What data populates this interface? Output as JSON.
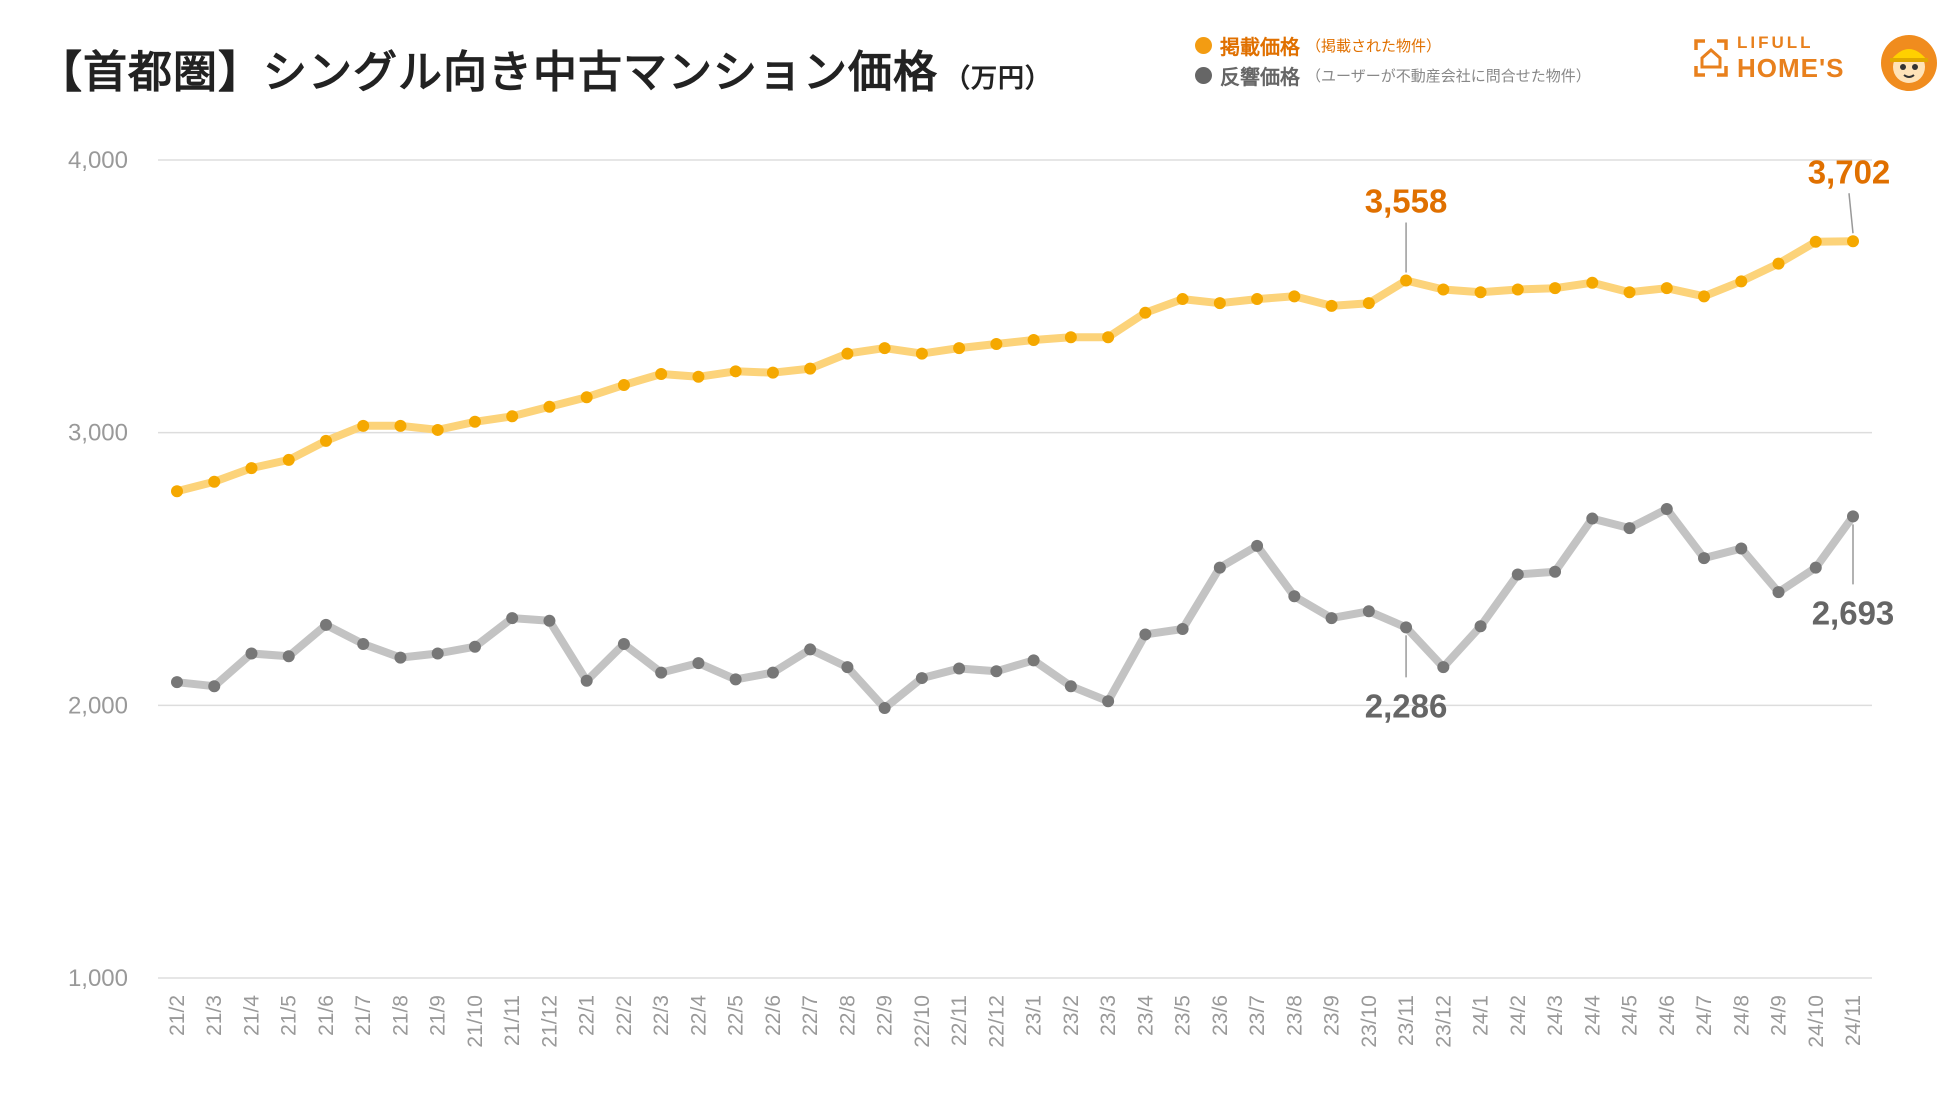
{
  "header": {
    "title": "【首都圏】シングル向き中古マンション価格",
    "unit": "（万円）"
  },
  "legend": [
    {
      "name": "掲載価格",
      "note": "（掲載された物件）",
      "color": "#f39c12"
    },
    {
      "name": "反響価格",
      "note": "（ユーザーが不動産会社に問合せた物件）",
      "color": "#666666"
    }
  ],
  "logo": {
    "line1": "LIFULL",
    "line2": "HOME'S"
  },
  "chart_data": {
    "type": "line",
    "title": "【首都圏】シングル向き中古マンション価格",
    "ylabel": "万円",
    "ylim": [
      1000,
      4000
    ],
    "yticks": [
      1000,
      2000,
      3000,
      4000
    ],
    "ytick_labels": [
      "1,000",
      "2,000",
      "3,000",
      "4,000"
    ],
    "grid": true,
    "legend_position": "top-right",
    "categories": [
      "21/2",
      "21/3",
      "21/4",
      "21/5",
      "21/6",
      "21/7",
      "21/8",
      "21/9",
      "21/10",
      "21/11",
      "21/12",
      "22/1",
      "22/2",
      "22/3",
      "22/4",
      "22/5",
      "22/6",
      "22/7",
      "22/8",
      "22/9",
      "22/10",
      "22/11",
      "22/12",
      "23/1",
      "23/2",
      "23/3",
      "23/4",
      "23/5",
      "23/6",
      "23/7",
      "23/8",
      "23/9",
      "23/10",
      "23/11",
      "23/12",
      "24/1",
      "24/2",
      "24/3",
      "24/4",
      "24/5",
      "24/6",
      "24/7",
      "24/8",
      "24/9",
      "24/10",
      "24/11"
    ],
    "series": [
      {
        "name": "掲載価格",
        "values": [
          2785,
          2820,
          2870,
          2900,
          2970,
          3025,
          3025,
          3010,
          3040,
          3060,
          3095,
          3130,
          3175,
          3215,
          3205,
          3225,
          3220,
          3235,
          3290,
          3310,
          3290,
          3310,
          3325,
          3340,
          3350,
          3350,
          3440,
          3490,
          3475,
          3490,
          3500,
          3465,
          3475,
          3558,
          3525,
          3515,
          3525,
          3530,
          3550,
          3515,
          3530,
          3500,
          3555,
          3620,
          3700,
          3702
        ]
      },
      {
        "name": "反響価格",
        "values": [
          2085,
          2070,
          2190,
          2180,
          2295,
          2225,
          2175,
          2190,
          2215,
          2320,
          2310,
          2090,
          2225,
          2120,
          2155,
          2095,
          2120,
          2205,
          2140,
          1990,
          2100,
          2135,
          2125,
          2165,
          2070,
          2015,
          2260,
          2280,
          2505,
          2585,
          2400,
          2320,
          2345,
          2286,
          2140,
          2290,
          2480,
          2490,
          2685,
          2650,
          2720,
          2540,
          2575,
          2415,
          2505,
          2693
        ]
      }
    ],
    "annotations": [
      {
        "series": "掲載価格",
        "x": "23/11",
        "label": "3,558"
      },
      {
        "series": "掲載価格",
        "x": "24/11",
        "label": "3,702"
      },
      {
        "series": "反響価格",
        "x": "23/11",
        "label": "2,286"
      },
      {
        "series": "反響価格",
        "x": "24/11",
        "label": "2,693"
      }
    ]
  }
}
